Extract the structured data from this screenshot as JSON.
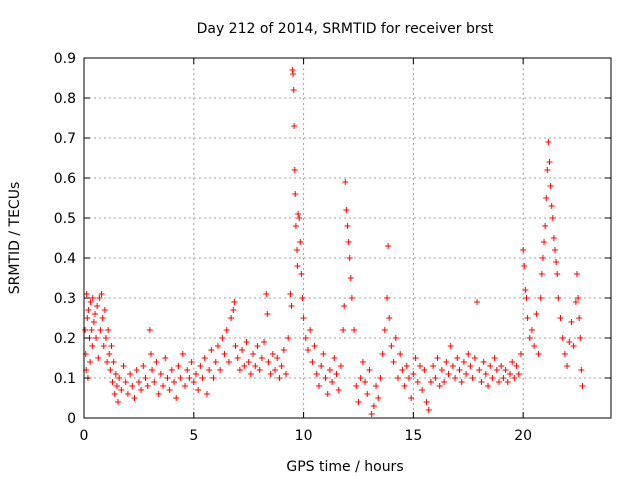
{
  "chart_data": {
    "type": "scatter",
    "title": "Day 212 of 2014, SRMTID for receiver brst",
    "xlabel": "GPS time / hours",
    "ylabel": "SRMTID / TECUs",
    "xlim": [
      0,
      24
    ],
    "ylim": [
      0,
      0.9
    ],
    "xticks": [
      0,
      5,
      10,
      15,
      20
    ],
    "yticks": [
      0,
      0.1,
      0.2,
      0.3,
      0.4,
      0.5,
      0.6,
      0.7,
      0.8,
      0.9
    ],
    "xtick_labels": [
      "0",
      "5",
      "10",
      "15",
      "20"
    ],
    "ytick_labels": [
      "0",
      "0.1",
      "0.2",
      "0.3",
      "0.4",
      "0.5",
      "0.6",
      "0.7",
      "0.8",
      "0.9"
    ],
    "grid": true,
    "marker": "+",
    "color": "#ff0000",
    "series": [
      {
        "name": "SRMTID",
        "points": [
          [
            0.05,
            0.22
          ],
          [
            0.08,
            0.16
          ],
          [
            0.1,
            0.12
          ],
          [
            0.12,
            0.31
          ],
          [
            0.15,
            0.25
          ],
          [
            0.18,
            0.1
          ],
          [
            0.2,
            0.27
          ],
          [
            0.25,
            0.2
          ],
          [
            0.28,
            0.14
          ],
          [
            0.3,
            0.29
          ],
          [
            0.35,
            0.22
          ],
          [
            0.38,
            0.18
          ],
          [
            0.4,
            0.3
          ],
          [
            0.45,
            0.24
          ],
          [
            0.5,
            0.26
          ],
          [
            0.55,
            0.2
          ],
          [
            0.6,
            0.28
          ],
          [
            0.65,
            0.15
          ],
          [
            0.7,
            0.3
          ],
          [
            0.75,
            0.22
          ],
          [
            0.8,
            0.31
          ],
          [
            0.85,
            0.25
          ],
          [
            0.9,
            0.18
          ],
          [
            0.95,
            0.27
          ],
          [
            1.0,
            0.2
          ],
          [
            1.05,
            0.14
          ],
          [
            1.1,
            0.22
          ],
          [
            1.15,
            0.16
          ],
          [
            1.2,
            0.12
          ],
          [
            1.25,
            0.18
          ],
          [
            1.3,
            0.09
          ],
          [
            1.35,
            0.14
          ],
          [
            1.4,
            0.06
          ],
          [
            1.45,
            0.11
          ],
          [
            1.5,
            0.08
          ],
          [
            1.55,
            0.04
          ],
          [
            1.6,
            0.1
          ],
          [
            1.7,
            0.07
          ],
          [
            1.8,
            0.13
          ],
          [
            1.9,
            0.09
          ],
          [
            2.0,
            0.06
          ],
          [
            2.1,
            0.11
          ],
          [
            2.2,
            0.08
          ],
          [
            2.3,
            0.05
          ],
          [
            2.4,
            0.12
          ],
          [
            2.5,
            0.09
          ],
          [
            2.6,
            0.07
          ],
          [
            2.7,
            0.13
          ],
          [
            2.8,
            0.1
          ],
          [
            2.9,
            0.08
          ],
          [
            3.0,
            0.22
          ],
          [
            3.05,
            0.16
          ],
          [
            3.1,
            0.12
          ],
          [
            3.2,
            0.09
          ],
          [
            3.3,
            0.14
          ],
          [
            3.4,
            0.06
          ],
          [
            3.5,
            0.11
          ],
          [
            3.6,
            0.08
          ],
          [
            3.7,
            0.15
          ],
          [
            3.8,
            0.1
          ],
          [
            3.9,
            0.07
          ],
          [
            4.0,
            0.12
          ],
          [
            4.1,
            0.09
          ],
          [
            4.2,
            0.05
          ],
          [
            4.3,
            0.13
          ],
          [
            4.4,
            0.1
          ],
          [
            4.5,
            0.16
          ],
          [
            4.6,
            0.08
          ],
          [
            4.7,
            0.12
          ],
          [
            4.8,
            0.1
          ],
          [
            4.9,
            0.14
          ],
          [
            5.0,
            0.09
          ],
          [
            5.1,
            0.11
          ],
          [
            5.2,
            0.07
          ],
          [
            5.3,
            0.13
          ],
          [
            5.4,
            0.1
          ],
          [
            5.5,
            0.15
          ],
          [
            5.6,
            0.06
          ],
          [
            5.7,
            0.12
          ],
          [
            5.8,
            0.17
          ],
          [
            5.9,
            0.1
          ],
          [
            6.0,
            0.14
          ],
          [
            6.1,
            0.18
          ],
          [
            6.2,
            0.12
          ],
          [
            6.3,
            0.2
          ],
          [
            6.4,
            0.16
          ],
          [
            6.5,
            0.22
          ],
          [
            6.6,
            0.14
          ],
          [
            6.7,
            0.25
          ],
          [
            6.8,
            0.27
          ],
          [
            6.85,
            0.29
          ],
          [
            6.9,
            0.18
          ],
          [
            7.0,
            0.15
          ],
          [
            7.1,
            0.12
          ],
          [
            7.2,
            0.17
          ],
          [
            7.3,
            0.13
          ],
          [
            7.4,
            0.19
          ],
          [
            7.5,
            0.14
          ],
          [
            7.6,
            0.11
          ],
          [
            7.7,
            0.16
          ],
          [
            7.8,
            0.13
          ],
          [
            7.9,
            0.18
          ],
          [
            8.0,
            0.12
          ],
          [
            8.1,
            0.15
          ],
          [
            8.2,
            0.19
          ],
          [
            8.3,
            0.31
          ],
          [
            8.35,
            0.26
          ],
          [
            8.4,
            0.14
          ],
          [
            8.5,
            0.11
          ],
          [
            8.6,
            0.16
          ],
          [
            8.7,
            0.12
          ],
          [
            8.8,
            0.15
          ],
          [
            8.9,
            0.1
          ],
          [
            9.0,
            0.13
          ],
          [
            9.1,
            0.17
          ],
          [
            9.2,
            0.11
          ],
          [
            9.3,
            0.2
          ],
          [
            9.4,
            0.31
          ],
          [
            9.45,
            0.28
          ],
          [
            9.5,
            0.87
          ],
          [
            9.52,
            0.86
          ],
          [
            9.55,
            0.82
          ],
          [
            9.57,
            0.73
          ],
          [
            9.6,
            0.62
          ],
          [
            9.62,
            0.56
          ],
          [
            9.65,
            0.48
          ],
          [
            9.7,
            0.42
          ],
          [
            9.72,
            0.38
          ],
          [
            9.75,
            0.51
          ],
          [
            9.8,
            0.5
          ],
          [
            9.85,
            0.44
          ],
          [
            9.9,
            0.36
          ],
          [
            9.95,
            0.3
          ],
          [
            10.0,
            0.25
          ],
          [
            10.1,
            0.2
          ],
          [
            10.2,
            0.17
          ],
          [
            10.3,
            0.22
          ],
          [
            10.4,
            0.14
          ],
          [
            10.5,
            0.18
          ],
          [
            10.6,
            0.11
          ],
          [
            10.7,
            0.08
          ],
          [
            10.8,
            0.13
          ],
          [
            10.9,
            0.16
          ],
          [
            11.0,
            0.1
          ],
          [
            11.1,
            0.06
          ],
          [
            11.2,
            0.12
          ],
          [
            11.3,
            0.09
          ],
          [
            11.4,
            0.15
          ],
          [
            11.5,
            0.11
          ],
          [
            11.6,
            0.07
          ],
          [
            11.7,
            0.13
          ],
          [
            11.8,
            0.22
          ],
          [
            11.85,
            0.28
          ],
          [
            11.9,
            0.59
          ],
          [
            11.95,
            0.52
          ],
          [
            12.0,
            0.48
          ],
          [
            12.05,
            0.44
          ],
          [
            12.1,
            0.4
          ],
          [
            12.15,
            0.35
          ],
          [
            12.2,
            0.3
          ],
          [
            12.3,
            0.22
          ],
          [
            12.4,
            0.08
          ],
          [
            12.5,
            0.04
          ],
          [
            12.6,
            0.1
          ],
          [
            12.7,
            0.14
          ],
          [
            12.8,
            0.09
          ],
          [
            12.9,
            0.06
          ],
          [
            13.0,
            0.12
          ],
          [
            13.1,
            0.01
          ],
          [
            13.2,
            0.03
          ],
          [
            13.3,
            0.08
          ],
          [
            13.4,
            0.05
          ],
          [
            13.5,
            0.1
          ],
          [
            13.6,
            0.16
          ],
          [
            13.7,
            0.22
          ],
          [
            13.8,
            0.3
          ],
          [
            13.85,
            0.43
          ],
          [
            13.9,
            0.25
          ],
          [
            14.0,
            0.18
          ],
          [
            14.1,
            0.14
          ],
          [
            14.2,
            0.2
          ],
          [
            14.3,
            0.1
          ],
          [
            14.4,
            0.16
          ],
          [
            14.5,
            0.12
          ],
          [
            14.6,
            0.08
          ],
          [
            14.7,
            0.13
          ],
          [
            14.8,
            0.1
          ],
          [
            14.9,
            0.05
          ],
          [
            15.0,
            0.11
          ],
          [
            15.1,
            0.15
          ],
          [
            15.2,
            0.09
          ],
          [
            15.3,
            0.13
          ],
          [
            15.4,
            0.07
          ],
          [
            15.5,
            0.12
          ],
          [
            15.6,
            0.04
          ],
          [
            15.7,
            0.02
          ],
          [
            15.8,
            0.09
          ],
          [
            15.9,
            0.13
          ],
          [
            16.0,
            0.1
          ],
          [
            16.1,
            0.15
          ],
          [
            16.2,
            0.08
          ],
          [
            16.3,
            0.12
          ],
          [
            16.4,
            0.09
          ],
          [
            16.5,
            0.14
          ],
          [
            16.6,
            0.11
          ],
          [
            16.7,
            0.18
          ],
          [
            16.8,
            0.13
          ],
          [
            16.9,
            0.1
          ],
          [
            17.0,
            0.15
          ],
          [
            17.1,
            0.12
          ],
          [
            17.2,
            0.09
          ],
          [
            17.3,
            0.14
          ],
          [
            17.4,
            0.11
          ],
          [
            17.5,
            0.16
          ],
          [
            17.6,
            0.13
          ],
          [
            17.7,
            0.1
          ],
          [
            17.8,
            0.15
          ],
          [
            17.9,
            0.29
          ],
          [
            18.0,
            0.12
          ],
          [
            18.1,
            0.09
          ],
          [
            18.2,
            0.14
          ],
          [
            18.3,
            0.11
          ],
          [
            18.4,
            0.08
          ],
          [
            18.5,
            0.13
          ],
          [
            18.6,
            0.1
          ],
          [
            18.7,
            0.15
          ],
          [
            18.8,
            0.12
          ],
          [
            18.9,
            0.09
          ],
          [
            19.0,
            0.13
          ],
          [
            19.1,
            0.1
          ],
          [
            19.2,
            0.12
          ],
          [
            19.3,
            0.09
          ],
          [
            19.4,
            0.11
          ],
          [
            19.5,
            0.14
          ],
          [
            19.6,
            0.1
          ],
          [
            19.7,
            0.13
          ],
          [
            19.8,
            0.11
          ],
          [
            19.9,
            0.16
          ],
          [
            20.0,
            0.42
          ],
          [
            20.05,
            0.38
          ],
          [
            20.1,
            0.32
          ],
          [
            20.15,
            0.3
          ],
          [
            20.2,
            0.25
          ],
          [
            20.3,
            0.2
          ],
          [
            20.4,
            0.22
          ],
          [
            20.5,
            0.18
          ],
          [
            20.6,
            0.26
          ],
          [
            20.7,
            0.16
          ],
          [
            20.8,
            0.3
          ],
          [
            20.85,
            0.36
          ],
          [
            20.9,
            0.4
          ],
          [
            20.95,
            0.44
          ],
          [
            21.0,
            0.48
          ],
          [
            21.05,
            0.55
          ],
          [
            21.1,
            0.62
          ],
          [
            21.15,
            0.69
          ],
          [
            21.2,
            0.64
          ],
          [
            21.25,
            0.58
          ],
          [
            21.3,
            0.53
          ],
          [
            21.35,
            0.5
          ],
          [
            21.4,
            0.45
          ],
          [
            21.45,
            0.42
          ],
          [
            21.5,
            0.39
          ],
          [
            21.55,
            0.36
          ],
          [
            21.6,
            0.3
          ],
          [
            21.7,
            0.25
          ],
          [
            21.8,
            0.2
          ],
          [
            21.9,
            0.16
          ],
          [
            22.0,
            0.13
          ],
          [
            22.1,
            0.19
          ],
          [
            22.2,
            0.24
          ],
          [
            22.3,
            0.18
          ],
          [
            22.4,
            0.29
          ],
          [
            22.45,
            0.36
          ],
          [
            22.5,
            0.3
          ],
          [
            22.55,
            0.25
          ],
          [
            22.6,
            0.2
          ],
          [
            22.65,
            0.12
          ],
          [
            22.7,
            0.08
          ]
        ]
      }
    ]
  }
}
